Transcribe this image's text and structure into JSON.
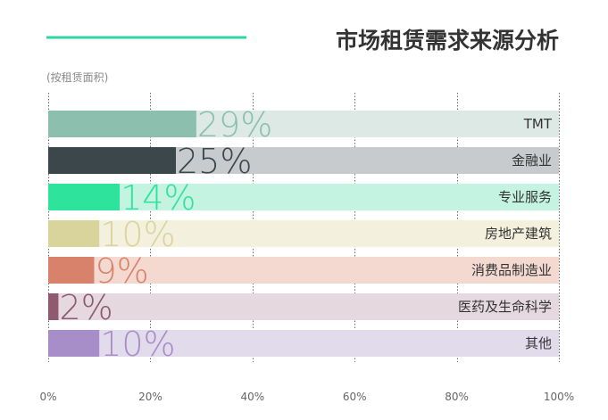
{
  "header": {
    "title": "市场租赁需求来源分析",
    "subtitle": "(按租赁面积)",
    "accent_color": "#2ed6a6"
  },
  "chart_data": {
    "type": "bar",
    "orientation": "horizontal",
    "title": "市场租赁需求来源分析",
    "subtitle": "(按租赁面积)",
    "categories": [
      "TMT",
      "金融业",
      "专业服务",
      "房地产建筑",
      "消费品制造业",
      "医药及生命科学",
      "其他"
    ],
    "values": [
      29,
      25,
      14,
      10,
      9,
      2,
      10
    ],
    "value_labels": [
      "29%",
      "25%",
      "14%",
      "10%",
      "9%",
      "2%",
      "10%"
    ],
    "colors": [
      "#8cbfae",
      "#3c474b",
      "#2ee39c",
      "#d8d49c",
      "#d8826c",
      "#8f5a6e",
      "#a88ec8"
    ],
    "track_colors": [
      "#dce9e4",
      "#c7cbcd",
      "#c4f3e1",
      "#f3f1de",
      "#f4d9d1",
      "#e5d8de",
      "#e2dbeb"
    ],
    "xlim": [
      0,
      100
    ],
    "x_ticks": [
      "0%",
      "20%",
      "40%",
      "60%",
      "80%",
      "100%"
    ],
    "grid": true,
    "xlabel": "",
    "ylabel": ""
  }
}
